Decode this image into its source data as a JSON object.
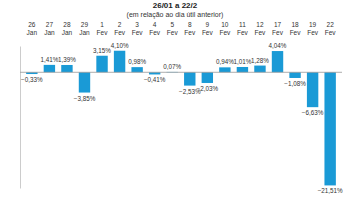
{
  "chart_data": {
    "type": "bar",
    "title": "26/01 a 22/2",
    "subtitle": "(em relação ao dia útil anterior)",
    "categories": [
      "26 Jan",
      "27 Jan",
      "28 Jan",
      "29 Jan",
      "1 Fev",
      "2 Fev",
      "3 Fev",
      "4 Fev",
      "5 Fev",
      "8 Fev",
      "9 Fev",
      "10 Fev",
      "11 Fev",
      "12 Fev",
      "17 Fev",
      "18 Fev",
      "19 Fev",
      "22 Fev"
    ],
    "values": [
      -0.33,
      1.41,
      1.39,
      -3.85,
      3.15,
      4.1,
      0.98,
      -0.41,
      0.07,
      -2.53,
      -2.03,
      0.94,
      1.01,
      1.28,
      4.04,
      -1.08,
      -6.63,
      -21.51
    ],
    "value_labels": [
      "−0,33%",
      "1,41%",
      "1,39%",
      "−3,85%",
      "3,15%",
      "4,10%",
      "0,98%",
      "−0,41%",
      "0,07%",
      "−2,53%",
      "−2,03%",
      "0,94%",
      "1,01%",
      "1,28%",
      "4,04%",
      "−1,08%",
      "−6,63%",
      "−21,51%"
    ],
    "color": "#1a9ad6",
    "ylim": [
      -22,
      5
    ],
    "data_labels": true,
    "tick_labels": "x",
    "grid": false
  }
}
